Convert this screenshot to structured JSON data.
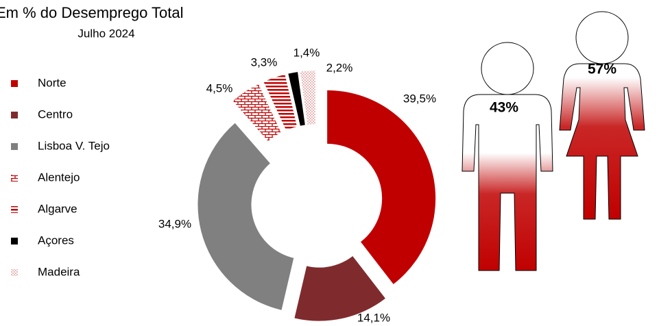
{
  "chart_data": [
    {
      "type": "pie",
      "title": "Em % do Desemprego Total",
      "subtitle": "Julho 2024",
      "categories": [
        "Norte",
        "Centro",
        "Lisboa V. Tejo",
        "Alentejo",
        "Algarve",
        "Açores",
        "Madeira"
      ],
      "values": [
        39.5,
        14.1,
        34.9,
        4.5,
        3.3,
        1.4,
        2.2
      ],
      "value_labels": [
        "39,5%",
        "14,1%",
        "34,9%",
        "4,5%",
        "3,3%",
        "1,4%",
        "2,2%"
      ],
      "colors": [
        "#c00000",
        "#7f2b2e",
        "#808080",
        "#c00000",
        "#c00000",
        "#000000",
        "#e8a0a0"
      ],
      "patterns": [
        "solid",
        "solid",
        "solid",
        "brick",
        "horizontal",
        "solid",
        "dots"
      ],
      "donut": true,
      "legend": "left"
    },
    {
      "type": "pictogram",
      "values": [
        43,
        57
      ],
      "value_labels": [
        "43%",
        "57%"
      ],
      "color": "#c00000"
    }
  ]
}
